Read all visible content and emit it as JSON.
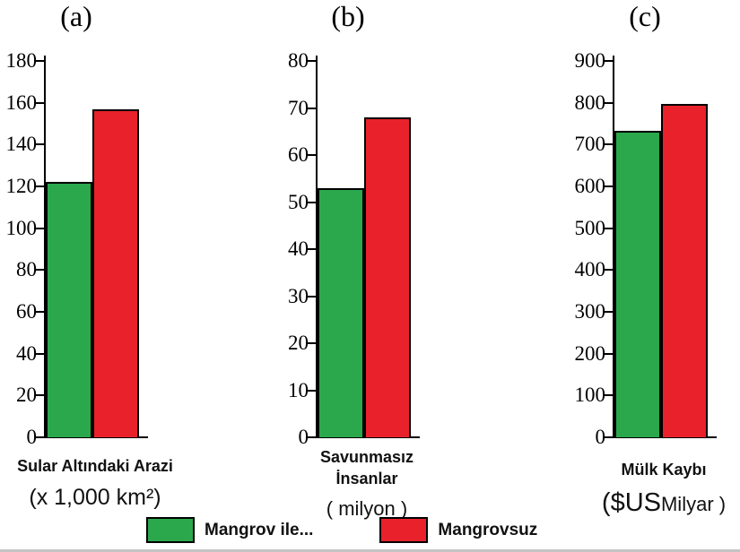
{
  "figure": {
    "legend": {
      "items": [
        {
          "label": "Mangrov ile...",
          "color": "#2BA84C"
        },
        {
          "label": "Mangrovsuz",
          "color": "#E8212B"
        }
      ]
    },
    "colors": {
      "green": "#2BA84C",
      "red": "#E8212B",
      "axis": "#000000"
    }
  },
  "chart_data": [
    {
      "type": "bar",
      "panel": "(a)",
      "title": "Sular Altındaki Arazi",
      "title_lines": [
        "Sular Altındaki Arazi"
      ],
      "unit": "(x 1,000 km²)",
      "unit_parts": [
        {
          "text": "(x 1,000 km²)",
          "style": "md"
        }
      ],
      "categories": [
        "Mangrov ile...",
        "Mangrovsuz"
      ],
      "values": [
        122,
        157
      ],
      "colors": [
        "#2BA84C",
        "#E8212B"
      ],
      "ylim": [
        0,
        180
      ],
      "ytick_step": 20,
      "grid": false,
      "legend_position": "bottom"
    },
    {
      "type": "bar",
      "panel": "(b)",
      "title": "Savunmasız İnsanlar",
      "title_lines": [
        "Savunmasız",
        "İnsanlar"
      ],
      "unit": "( milyon )",
      "unit_parts": [
        {
          "text": "( milyon )",
          "style": "sm"
        }
      ],
      "categories": [
        "Mangrov ile...",
        "Mangrovsuz"
      ],
      "values": [
        53,
        68
      ],
      "colors": [
        "#2BA84C",
        "#E8212B"
      ],
      "ylim": [
        0,
        80
      ],
      "ytick_step": 10,
      "grid": false,
      "legend_position": "bottom"
    },
    {
      "type": "bar",
      "panel": "(c)",
      "title": "Mülk Kaybı",
      "title_lines": [
        "Mülk Kaybı"
      ],
      "unit": "($US Milyar )",
      "unit_parts": [
        {
          "text": "($US ",
          "style": "lg"
        },
        {
          "text": "Milyar )",
          "style": "sm"
        }
      ],
      "categories": [
        "Mangrov ile...",
        "Mangrovsuz"
      ],
      "values": [
        733,
        797
      ],
      "colors": [
        "#2BA84C",
        "#E8212B"
      ],
      "ylim": [
        0,
        900
      ],
      "ytick_step": 100,
      "grid": false,
      "legend_position": "bottom"
    }
  ]
}
